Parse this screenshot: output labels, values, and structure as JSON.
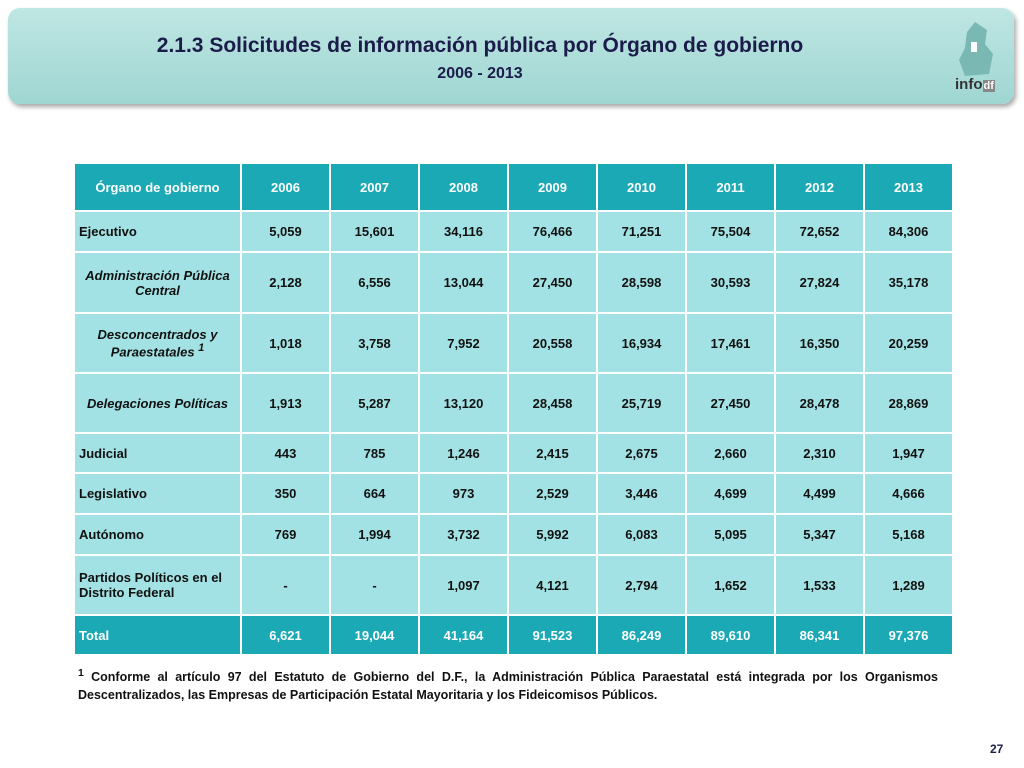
{
  "header": {
    "title": "2.1.3 Solicitudes de información pública por Órgano de gobierno",
    "subtitle": "2006 - 2013"
  },
  "logo": {
    "text": "info",
    "suffix": "df"
  },
  "table": {
    "columns": [
      "Órgano de gobierno",
      "2006",
      "2007",
      "2008",
      "2009",
      "2010",
      "2011",
      "2012",
      "2013"
    ],
    "rows": [
      {
        "label": "Ejecutivo",
        "cells": [
          "5,059",
          "15,601",
          "34,116",
          "76,466",
          "71,251",
          "75,504",
          "72,652",
          "84,306"
        ]
      },
      {
        "label": "Administración Pública Central",
        "cells": [
          "2,128",
          "6,556",
          "13,044",
          "27,450",
          "28,598",
          "30,593",
          "27,824",
          "35,178"
        ]
      },
      {
        "label": "Desconcentrados y Paraestatales",
        "note": "1",
        "cells": [
          "1,018",
          "3,758",
          "7,952",
          "20,558",
          "16,934",
          "17,461",
          "16,350",
          "20,259"
        ]
      },
      {
        "label": "Delegaciones Políticas",
        "cells": [
          "1,913",
          "5,287",
          "13,120",
          "28,458",
          "25,719",
          "27,450",
          "28,478",
          "28,869"
        ]
      },
      {
        "label": "Judicial",
        "cells": [
          "443",
          "785",
          "1,246",
          "2,415",
          "2,675",
          "2,660",
          "2,310",
          "1,947"
        ]
      },
      {
        "label": "Legislativo",
        "cells": [
          "350",
          "664",
          "973",
          "2,529",
          "3,446",
          "4,699",
          "4,499",
          "4,666"
        ]
      },
      {
        "label": "Autónomo",
        "cells": [
          "769",
          "1,994",
          "3,732",
          "5,992",
          "6,083",
          "5,095",
          "5,347",
          "5,168"
        ]
      },
      {
        "label": "Partidos Políticos en el Distrito Federal",
        "cells": [
          "-",
          "-",
          "1,097",
          "4,121",
          "2,794",
          "1,652",
          "1,533",
          "1,289"
        ]
      },
      {
        "label": "Total",
        "cells": [
          "6,621",
          "19,044",
          "41,164",
          "91,523",
          "86,249",
          "89,610",
          "86,341",
          "97,376"
        ]
      }
    ]
  },
  "footnote": {
    "mark": "1",
    "text": "Conforme al artículo 97 del Estatuto de Gobierno del D.F., la Administración Pública Paraestatal está integrada por los Organismos Descentralizados, las Empresas de Participación Estatal Mayoritaria y los Fideicomisos Públicos."
  },
  "page_number": "27"
}
